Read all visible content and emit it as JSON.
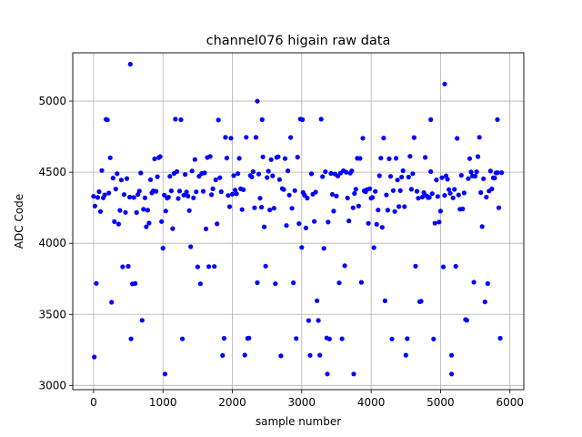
{
  "chart_data": {
    "type": "scatter",
    "title": "channel076 higain raw data",
    "xlabel": "sample number",
    "ylabel": "ADC Code",
    "xlim": [
      -300,
      6200
    ],
    "ylim": [
      2970,
      5340
    ],
    "x_ticks": [
      0,
      1000,
      2000,
      3000,
      4000,
      5000,
      6000
    ],
    "y_ticks": [
      3000,
      3500,
      4000,
      4500,
      5000
    ],
    "grid": true,
    "marker_color": "#0000ff",
    "n_samples": 5900,
    "sample_step": 20,
    "levels": [
      {
        "value": 4350,
        "weight": 0.26,
        "jitter": 35
      },
      {
        "value": 4480,
        "weight": 0.2,
        "jitter": 35
      },
      {
        "value": 4600,
        "weight": 0.09,
        "jitter": 12
      },
      {
        "value": 4240,
        "weight": 0.09,
        "jitter": 25
      },
      {
        "value": 4130,
        "weight": 0.05,
        "jitter": 30
      },
      {
        "value": 3970,
        "weight": 0.025,
        "jitter": 6
      },
      {
        "value": 3840,
        "weight": 0.025,
        "jitter": 6
      },
      {
        "value": 3720,
        "weight": 0.03,
        "jitter": 6
      },
      {
        "value": 3590,
        "weight": 0.03,
        "jitter": 6
      },
      {
        "value": 3460,
        "weight": 0.03,
        "jitter": 6
      },
      {
        "value": 3330,
        "weight": 0.035,
        "jitter": 4
      },
      {
        "value": 3210,
        "weight": 0.02,
        "jitter": 4
      },
      {
        "value": 4740,
        "weight": 0.025,
        "jitter": 6
      },
      {
        "value": 4870,
        "weight": 0.015,
        "jitter": 4
      }
    ],
    "points": [
      {
        "x": 530,
        "y": 5260
      },
      {
        "x": 5060,
        "y": 5120
      },
      {
        "x": 2360,
        "y": 5000
      },
      {
        "x": 1030,
        "y": 3080
      },
      {
        "x": 3370,
        "y": 3080
      },
      {
        "x": 3750,
        "y": 3080
      },
      {
        "x": 5160,
        "y": 3080
      },
      {
        "x": 10,
        "y": 3200
      },
      {
        "x": 2430,
        "y": 4870
      },
      {
        "x": 3010,
        "y": 4870
      },
      {
        "x": 4860,
        "y": 4870
      },
      {
        "x": 5820,
        "y": 4870
      }
    ]
  }
}
